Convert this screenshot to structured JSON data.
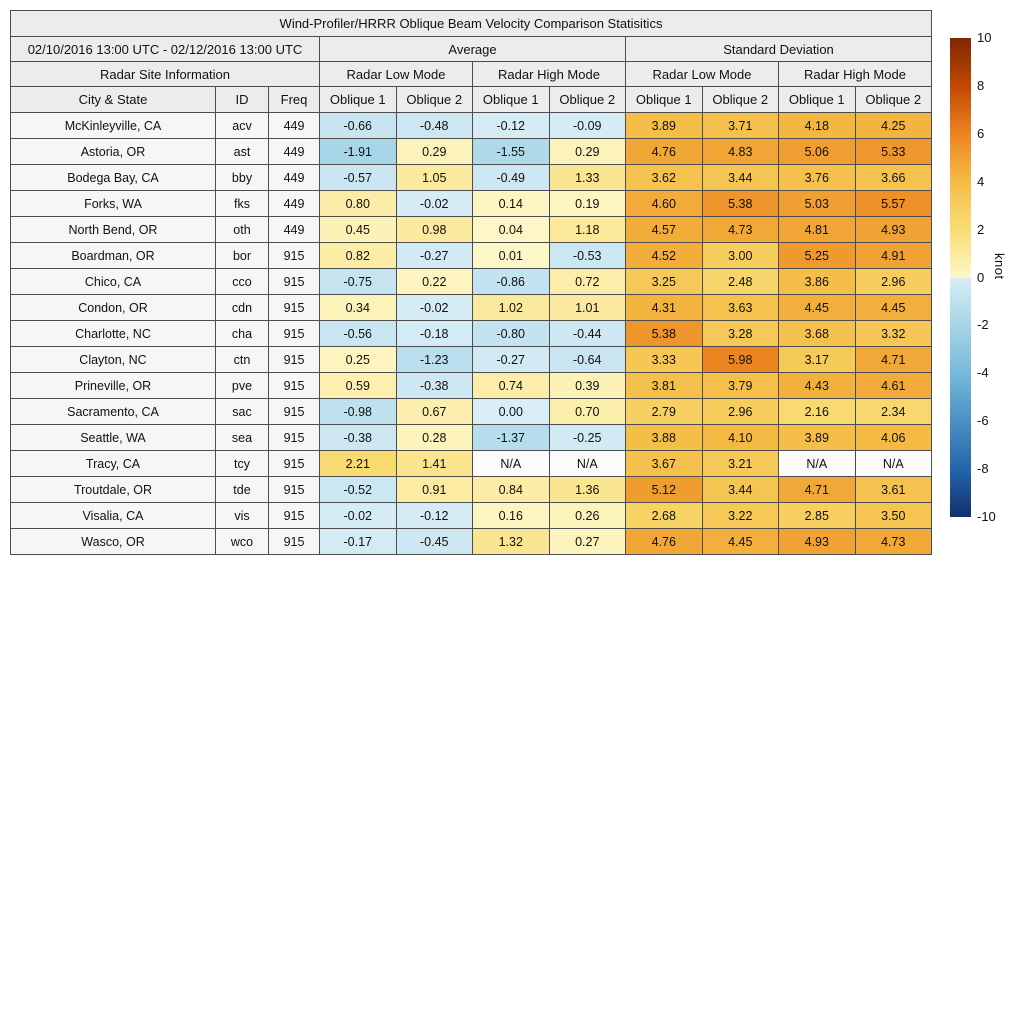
{
  "chart_data": {
    "type": "table",
    "title": "Wind-Profiler/HRRR Oblique Beam Velocity Comparison Statisitics",
    "date_range": "02/10/2016 13:00 UTC - 02/12/2016 13:00 UTC",
    "group_headers": [
      "Average",
      "Standard Deviation"
    ],
    "site_info_header": "Radar Site Information",
    "mode_headers": [
      "Radar Low Mode",
      "Radar High Mode",
      "Radar Low Mode",
      "Radar High Mode"
    ],
    "column_headers": [
      "City & State",
      "ID",
      "Freq",
      "Oblique 1",
      "Oblique 2",
      "Oblique 1",
      "Oblique 2",
      "Oblique 1",
      "Oblique 2",
      "Oblique 1",
      "Oblique 2"
    ],
    "rows": [
      {
        "city": "McKinleyville, CA",
        "id": "acv",
        "freq": "449",
        "values": [
          "-0.66",
          "-0.48",
          "-0.12",
          "-0.09",
          "3.89",
          "3.71",
          "4.18",
          "4.25"
        ]
      },
      {
        "city": "Astoria, OR",
        "id": "ast",
        "freq": "449",
        "values": [
          "-1.91",
          "0.29",
          "-1.55",
          "0.29",
          "4.76",
          "4.83",
          "5.06",
          "5.33"
        ]
      },
      {
        "city": "Bodega Bay, CA",
        "id": "bby",
        "freq": "449",
        "values": [
          "-0.57",
          "1.05",
          "-0.49",
          "1.33",
          "3.62",
          "3.44",
          "3.76",
          "3.66"
        ]
      },
      {
        "city": "Forks, WA",
        "id": "fks",
        "freq": "449",
        "values": [
          "0.80",
          "-0.02",
          "0.14",
          "0.19",
          "4.60",
          "5.38",
          "5.03",
          "5.57"
        ]
      },
      {
        "city": "North Bend, OR",
        "id": "oth",
        "freq": "449",
        "values": [
          "0.45",
          "0.98",
          "0.04",
          "1.18",
          "4.57",
          "4.73",
          "4.81",
          "4.93"
        ]
      },
      {
        "city": "Boardman, OR",
        "id": "bor",
        "freq": "915",
        "values": [
          "0.82",
          "-0.27",
          "0.01",
          "-0.53",
          "4.52",
          "3.00",
          "5.25",
          "4.91"
        ]
      },
      {
        "city": "Chico, CA",
        "id": "cco",
        "freq": "915",
        "values": [
          "-0.75",
          "0.22",
          "-0.86",
          "0.72",
          "3.25",
          "2.48",
          "3.86",
          "2.96"
        ]
      },
      {
        "city": "Condon, OR",
        "id": "cdn",
        "freq": "915",
        "values": [
          "0.34",
          "-0.02",
          "1.02",
          "1.01",
          "4.31",
          "3.63",
          "4.45",
          "4.45"
        ]
      },
      {
        "city": "Charlotte, NC",
        "id": "cha",
        "freq": "915",
        "values": [
          "-0.56",
          "-0.18",
          "-0.80",
          "-0.44",
          "5.38",
          "3.28",
          "3.68",
          "3.32"
        ]
      },
      {
        "city": "Clayton, NC",
        "id": "ctn",
        "freq": "915",
        "values": [
          "0.25",
          "-1.23",
          "-0.27",
          "-0.64",
          "3.33",
          "5.98",
          "3.17",
          "4.71"
        ]
      },
      {
        "city": "Prineville, OR",
        "id": "pve",
        "freq": "915",
        "values": [
          "0.59",
          "-0.38",
          "0.74",
          "0.39",
          "3.81",
          "3.79",
          "4.43",
          "4.61"
        ]
      },
      {
        "city": "Sacramento, CA",
        "id": "sac",
        "freq": "915",
        "values": [
          "-0.98",
          "0.67",
          "0.00",
          "0.70",
          "2.79",
          "2.96",
          "2.16",
          "2.34"
        ]
      },
      {
        "city": "Seattle, WA",
        "id": "sea",
        "freq": "915",
        "values": [
          "-0.38",
          "0.28",
          "-1.37",
          "-0.25",
          "3.88",
          "4.10",
          "3.89",
          "4.06"
        ]
      },
      {
        "city": "Tracy, CA",
        "id": "tcy",
        "freq": "915",
        "values": [
          "2.21",
          "1.41",
          "N/A",
          "N/A",
          "3.67",
          "3.21",
          "N/A",
          "N/A"
        ]
      },
      {
        "city": "Troutdale, OR",
        "id": "tde",
        "freq": "915",
        "values": [
          "-0.52",
          "0.91",
          "0.84",
          "1.36",
          "5.12",
          "3.44",
          "4.71",
          "3.61"
        ]
      },
      {
        "city": "Visalia, CA",
        "id": "vis",
        "freq": "915",
        "values": [
          "-0.02",
          "-0.12",
          "0.16",
          "0.26",
          "2.68",
          "3.22",
          "2.85",
          "3.50"
        ]
      },
      {
        "city": "Wasco, OR",
        "id": "wco",
        "freq": "915",
        "values": [
          "-0.17",
          "-0.45",
          "1.32",
          "0.27",
          "4.76",
          "4.45",
          "4.93",
          "4.73"
        ]
      }
    ],
    "colorbar": {
      "label": "knot",
      "min": -10,
      "max": 10,
      "ticks": [
        "10",
        "8",
        "6",
        "4",
        "2",
        "0",
        "-2",
        "-4",
        "-6",
        "-8",
        "-10"
      ],
      "warm_stops": [
        [
          0,
          "#fdf7c8"
        ],
        [
          2,
          "#f9dd76"
        ],
        [
          4,
          "#f4bc45"
        ],
        [
          6,
          "#ec8420"
        ],
        [
          8,
          "#c14802"
        ],
        [
          10,
          "#7f2704"
        ]
      ],
      "cool_stops": [
        [
          0,
          "#d8edf6"
        ],
        [
          2,
          "#a5d5e7"
        ],
        [
          4,
          "#77b9da"
        ],
        [
          6,
          "#4a91c4"
        ],
        [
          8,
          "#2566ab"
        ],
        [
          10,
          "#10306e"
        ]
      ]
    }
  },
  "colors": {
    "header_bg": "#ececec",
    "label_bg": "#f6f6f6",
    "na_bg": "#fbfbfb",
    "grid_line": "#4d4d4d",
    "text": "#111111"
  }
}
